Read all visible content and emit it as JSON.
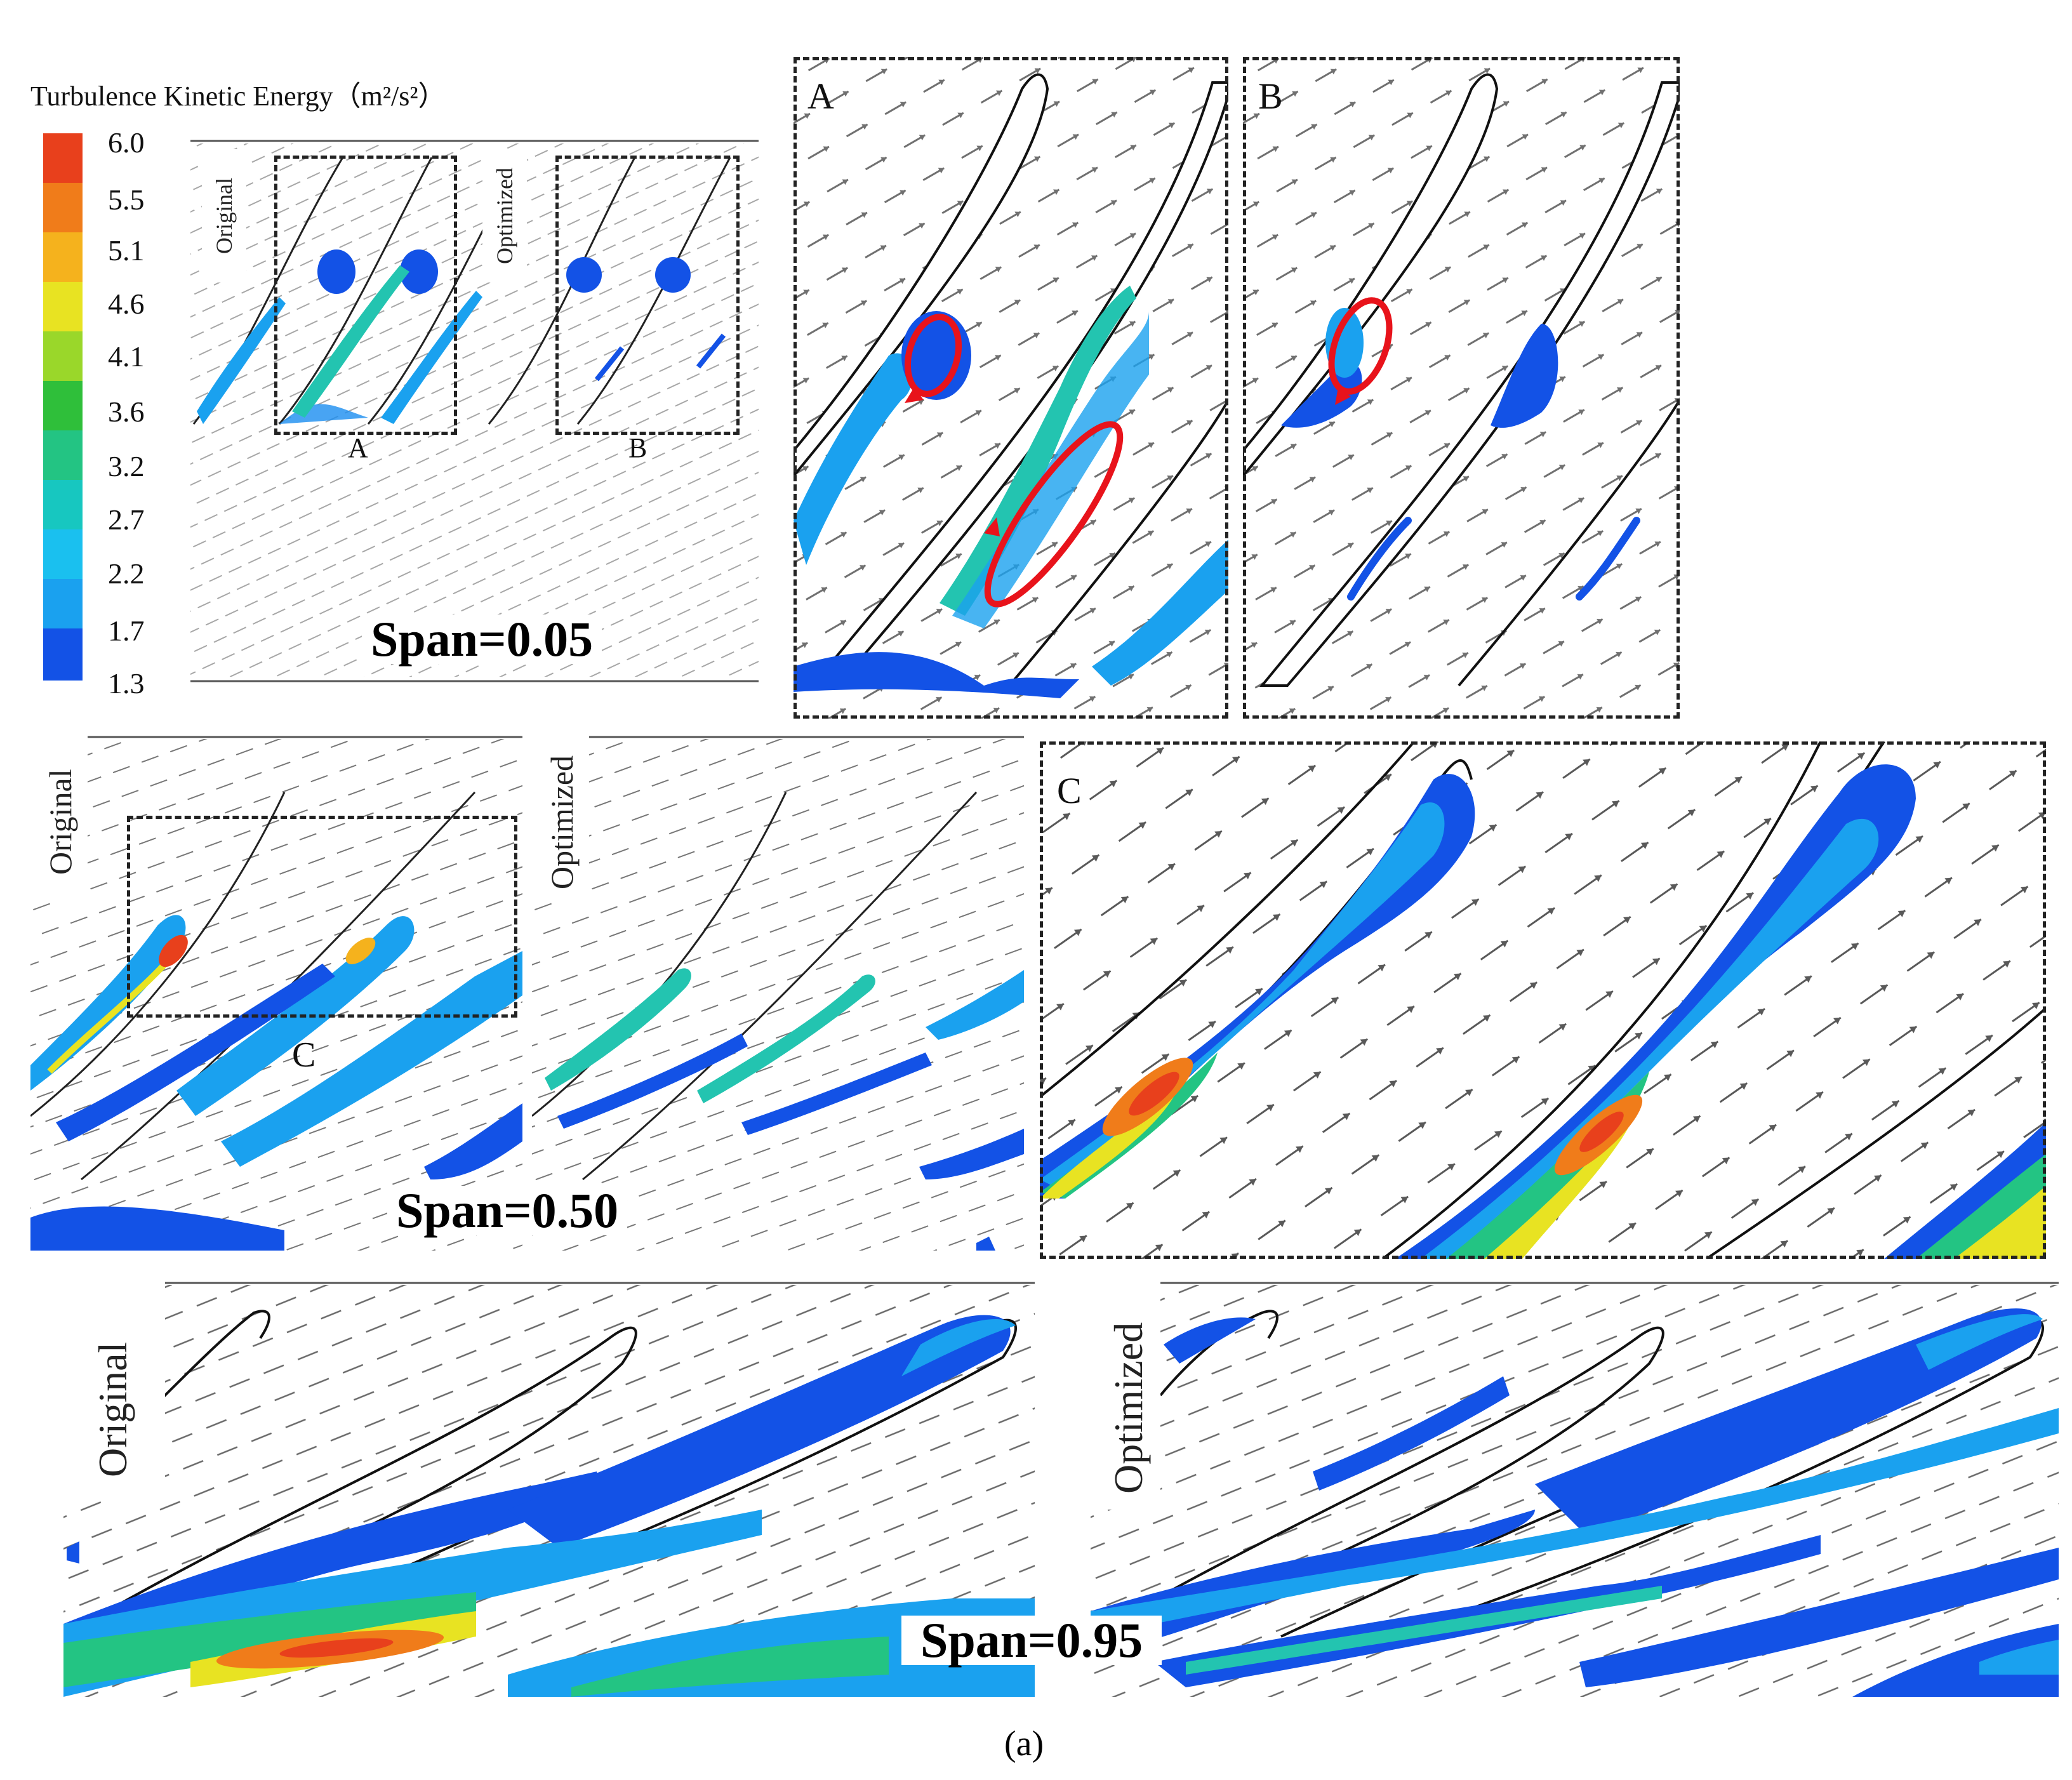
{
  "legend": {
    "title": "Turbulence Kinetic Energy（m²/s²）",
    "ticks": [
      "6.0",
      "5.5",
      "5.1",
      "4.6",
      "4.1",
      "3.6",
      "3.2",
      "2.7",
      "2.2",
      "1.7",
      "1.3"
    ],
    "colors": [
      "#e8401c",
      "#f07c1a",
      "#f5b21d",
      "#e8e322",
      "#9ad72a",
      "#2fbf3a",
      "#23c483",
      "#17c7c0",
      "#1ac0ef",
      "#1aa1ef",
      "#1352e6"
    ]
  },
  "row1": {
    "left_label": "Original",
    "right_label": "Optimized",
    "box_a_label": "A",
    "box_b_label": "B",
    "span": "Span=0.05"
  },
  "zoom": {
    "a": "A",
    "b": "B",
    "c": "C"
  },
  "row2": {
    "left_label": "Original",
    "right_label": "Optimized",
    "box_c_label": "C",
    "span": "Span=0.50"
  },
  "row3": {
    "left_label": "Original",
    "right_label": "Optimized",
    "span": "Span=0.95"
  },
  "caption": "(a)",
  "colors": {
    "blade": "#111111",
    "arrow": "#333333",
    "vortex": "#e8131b"
  }
}
